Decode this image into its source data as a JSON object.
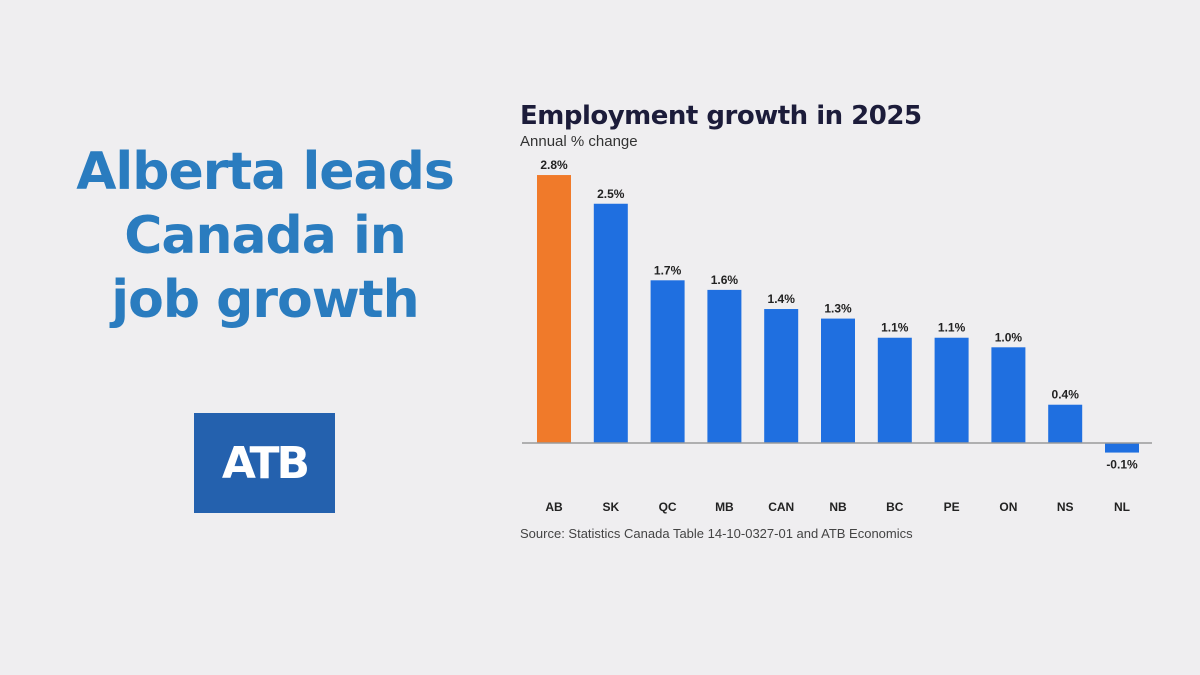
{
  "headline": {
    "line1": "Alberta leads",
    "line2": "Canada in",
    "line3": "job growth"
  },
  "logo": {
    "text": "ATB",
    "bg_color": "#2461ae"
  },
  "chart_data": {
    "type": "bar",
    "title": "Employment growth in 2025",
    "subtitle": "Annual % change",
    "categories": [
      "AB",
      "SK",
      "QC",
      "MB",
      "CAN",
      "NB",
      "BC",
      "PE",
      "ON",
      "NS",
      "NL"
    ],
    "values": [
      2.8,
      2.5,
      1.7,
      1.6,
      1.4,
      1.3,
      1.1,
      1.1,
      1.0,
      0.4,
      -0.1
    ],
    "value_labels": [
      "2.8%",
      "2.5%",
      "1.7%",
      "1.6%",
      "1.4%",
      "1.3%",
      "1.1%",
      "1.1%",
      "1.0%",
      "0.4%",
      "-0.1%"
    ],
    "highlight_color": "#f07a2a",
    "bar_color": "#1f6fe0",
    "grid": false,
    "legend": "none",
    "ylim": [
      -0.1,
      2.8
    ]
  },
  "source": "Source: Statistics Canada Table 14-10-0327-01 and ATB Economics"
}
